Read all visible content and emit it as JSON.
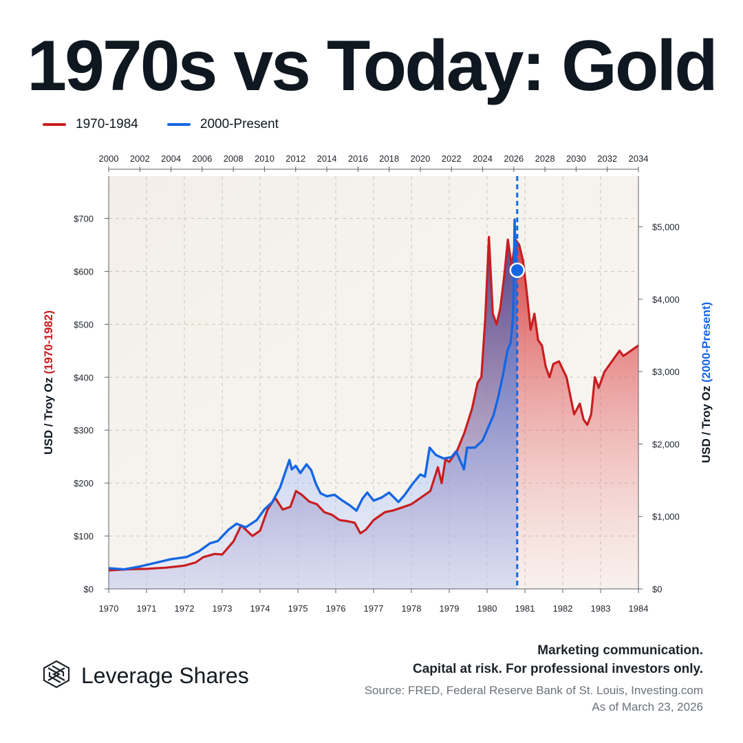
{
  "title": "1970s vs Today: Gold",
  "legend": {
    "red_label": "1970-1984",
    "blue_label": "2000-Present"
  },
  "colors": {
    "red": "#c81d1f",
    "blue": "#1566e2",
    "text": "#0f1720",
    "muted": "#6b7177"
  },
  "footer": {
    "brand": "Leverage Shares",
    "brand_icon": "leverage-shares-logo",
    "disclaimer_line1": "Marketing communication.",
    "disclaimer_line2": "Capital at risk. For professional investors only.",
    "source": "Source: FRED, Federal Reserve Bank of St. Louis, Investing.com",
    "as_of": "As of March 23, 2026"
  },
  "chart_data": {
    "type": "line",
    "axes": {
      "left_title_prefix": "USD / Troy Oz ",
      "left_title_highlight": "(1970-1982)",
      "right_title_prefix": "USD / Troy Oz ",
      "right_title_highlight": "(2000-Present)",
      "left_ylim": [
        0,
        780
      ],
      "right_ylim": [
        0,
        5700
      ],
      "left_ticks": [
        0,
        100,
        200,
        300,
        400,
        500,
        600,
        700
      ],
      "left_tick_labels": [
        "$0",
        "$100",
        "$200",
        "$300",
        "$400",
        "$500",
        "$600",
        "$700"
      ],
      "right_ticks": [
        0,
        1000,
        2000,
        3000,
        4000,
        5000
      ],
      "right_tick_labels": [
        "$0",
        "$1,000",
        "$2,000",
        "$3,000",
        "$4,000",
        "$5,000"
      ],
      "bottom_xlim": [
        1970,
        1984
      ],
      "bottom_ticks": [
        1970,
        1971,
        1972,
        1973,
        1974,
        1975,
        1976,
        1977,
        1978,
        1979,
        1980,
        1981,
        1982,
        1983,
        1984
      ],
      "bottom_tick_labels": [
        "1970",
        "1971",
        "1972",
        "1973",
        "1974",
        "1975",
        "1976",
        "1977",
        "1978",
        "1979",
        "1980",
        "1981",
        "1982",
        "1983",
        "1984"
      ],
      "top_xlim": [
        2000,
        2034
      ],
      "top_ticks": [
        2000,
        2002,
        2004,
        2006,
        2008,
        2010,
        2012,
        2014,
        2016,
        2018,
        2020,
        2022,
        2024,
        2026,
        2028,
        2030,
        2032,
        2034
      ],
      "top_tick_labels": [
        "2000",
        "2002",
        "2004",
        "2006",
        "2008",
        "2010",
        "2012",
        "2014",
        "2016",
        "2018",
        "2020",
        "2022",
        "2024",
        "2026",
        "2028",
        "2030",
        "2032",
        "2034"
      ],
      "grid": true
    },
    "marker": {
      "x": 2026.22,
      "y": 4400,
      "series": "2000-Present"
    },
    "series": [
      {
        "name": "1970-1984",
        "axis": "left",
        "x": [
          1970.0,
          1970.5,
          1971.0,
          1971.5,
          1972.0,
          1972.3,
          1972.5,
          1972.8,
          1973.0,
          1973.3,
          1973.5,
          1973.8,
          1974.0,
          1974.2,
          1974.4,
          1974.6,
          1974.8,
          1974.95,
          1975.1,
          1975.3,
          1975.5,
          1975.7,
          1975.9,
          1976.1,
          1976.3,
          1976.5,
          1976.65,
          1976.8,
          1977.0,
          1977.3,
          1977.5,
          1977.8,
          1978.0,
          1978.3,
          1978.5,
          1978.7,
          1978.8,
          1978.9,
          1979.0,
          1979.2,
          1979.4,
          1979.6,
          1979.75,
          1979.85,
          1979.95,
          1980.05,
          1980.15,
          1980.25,
          1980.35,
          1980.45,
          1980.55,
          1980.65,
          1980.75,
          1980.85,
          1980.95,
          1981.05,
          1981.15,
          1981.25,
          1981.35,
          1981.45,
          1981.55,
          1981.65,
          1981.75,
          1981.9,
          1982.1,
          1982.3,
          1982.45,
          1982.55,
          1982.65,
          1982.75,
          1982.85,
          1982.95,
          1983.1,
          1983.2,
          1983.3,
          1983.4,
          1983.5,
          1983.6,
          1983.7,
          1983.8,
          1983.9,
          1984.0
        ],
        "y": [
          35,
          37,
          38,
          40,
          44,
          50,
          60,
          66,
          65,
          90,
          120,
          100,
          110,
          150,
          172,
          150,
          155,
          185,
          178,
          165,
          160,
          145,
          140,
          130,
          128,
          125,
          105,
          112,
          130,
          145,
          148,
          155,
          160,
          175,
          185,
          230,
          200,
          245,
          240,
          260,
          295,
          340,
          390,
          400,
          510,
          665,
          520,
          500,
          530,
          590,
          660,
          610,
          660,
          650,
          620,
          560,
          490,
          520,
          470,
          460,
          420,
          400,
          425,
          430,
          400,
          330,
          350,
          320,
          310,
          330,
          400,
          380,
          410,
          420,
          430,
          440,
          450,
          440,
          445,
          450,
          455,
          460
        ]
      },
      {
        "name": "2000-Present",
        "axis": "right",
        "x": [
          2000.0,
          2001.0,
          2002.0,
          2003.0,
          2004.0,
          2005.0,
          2005.8,
          2006.5,
          2007.0,
          2007.7,
          2008.2,
          2008.8,
          2009.5,
          2010.0,
          2010.5,
          2011.0,
          2011.6,
          2011.75,
          2012.0,
          2012.3,
          2012.7,
          2013.0,
          2013.3,
          2013.6,
          2014.0,
          2014.5,
          2015.0,
          2015.5,
          2015.9,
          2016.3,
          2016.6,
          2017.0,
          2017.5,
          2018.0,
          2018.6,
          2019.0,
          2019.5,
          2020.0,
          2020.3,
          2020.6,
          2021.0,
          2021.5,
          2022.0,
          2022.3,
          2022.8,
          2023.0,
          2023.5,
          2024.0,
          2024.3,
          2024.7,
          2025.0,
          2025.3,
          2025.6,
          2025.8,
          2025.95,
          2026.0,
          2026.05,
          2026.1,
          2026.2
        ],
        "y": [
          285,
          270,
          310,
          360,
          410,
          440,
          520,
          630,
          660,
          820,
          900,
          850,
          950,
          1100,
          1200,
          1400,
          1780,
          1650,
          1700,
          1600,
          1720,
          1640,
          1450,
          1320,
          1280,
          1300,
          1220,
          1150,
          1080,
          1250,
          1330,
          1220,
          1260,
          1330,
          1200,
          1300,
          1450,
          1580,
          1550,
          1950,
          1850,
          1800,
          1820,
          1900,
          1650,
          1950,
          1950,
          2050,
          2200,
          2400,
          2650,
          2950,
          3300,
          3400,
          3750,
          4300,
          5100,
          4700,
          4400
        ]
      }
    ]
  }
}
